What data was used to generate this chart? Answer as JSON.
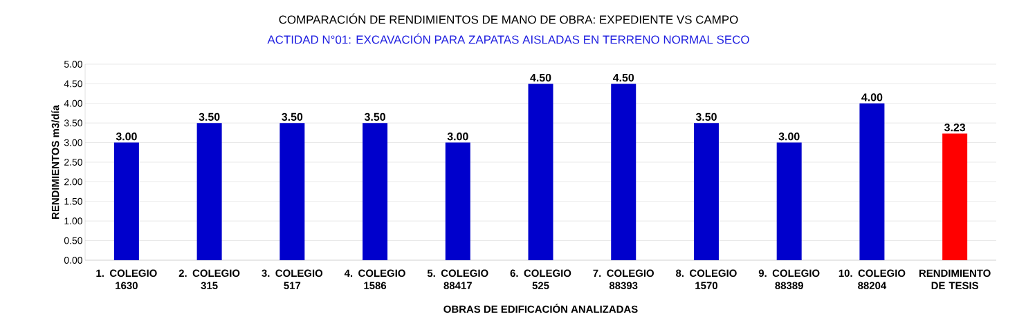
{
  "chart_data": {
    "type": "bar",
    "title": "COMPARACIÓN DE RENDIMIENTOS DE MANO DE OBRA: EXPEDIENTE VS CAMPO",
    "subtitle": "ACTIDAD N°01: EXCAVACIÓN PARA ZAPATAS AISLADAS EN TERRENO NORMAL SECO",
    "xlabel": "OBRAS DE EDIFICACIÓN ANALIZADAS",
    "ylabel": "RENDIMIENTOS  m3/día",
    "categories": [
      "1. COLEGIO 1630",
      "2. COLEGIO 315",
      "3. COLEGIO 517",
      "4. COLEGIO 1586",
      "5. COLEGIO 88417",
      "6. COLEGIO 525",
      "7. COLEGIO 88393",
      "8. COLEGIO 1570",
      "9. COLEGIO 88389",
      "10. COLEGIO 88204",
      "RENDIMIENTO DE TESIS"
    ],
    "values": [
      3.0,
      3.5,
      3.5,
      3.5,
      3.0,
      4.5,
      4.5,
      3.5,
      3.0,
      4.0,
      3.23
    ],
    "colors": [
      "#0000cc",
      "#0000cc",
      "#0000cc",
      "#0000cc",
      "#0000cc",
      "#0000cc",
      "#0000cc",
      "#0000cc",
      "#0000cc",
      "#0000cc",
      "#ff0000"
    ],
    "ylim": [
      0,
      5
    ],
    "yticks": [
      {
        "value": 0,
        "label": "0.00"
      },
      {
        "value": 0.5,
        "label": "0.50"
      },
      {
        "value": 1,
        "label": "1.00"
      },
      {
        "value": 1.5,
        "label": "1.50"
      },
      {
        "value": 2,
        "label": "2.00"
      },
      {
        "value": 2.5,
        "label": "2.50"
      },
      {
        "value": 3,
        "label": "3.00"
      },
      {
        "value": 3.5,
        "label": "3.50"
      },
      {
        "value": 4,
        "label": "4.00"
      },
      {
        "value": 4.5,
        "label": "4.50"
      },
      {
        "value": 5,
        "label": "5.00"
      }
    ],
    "grid": "y",
    "value_labels": [
      "3.00",
      "3.50",
      "3.50",
      "3.50",
      "3.00",
      "4.50",
      "4.50",
      "3.50",
      "3.00",
      "4.00",
      "3.23"
    ]
  }
}
